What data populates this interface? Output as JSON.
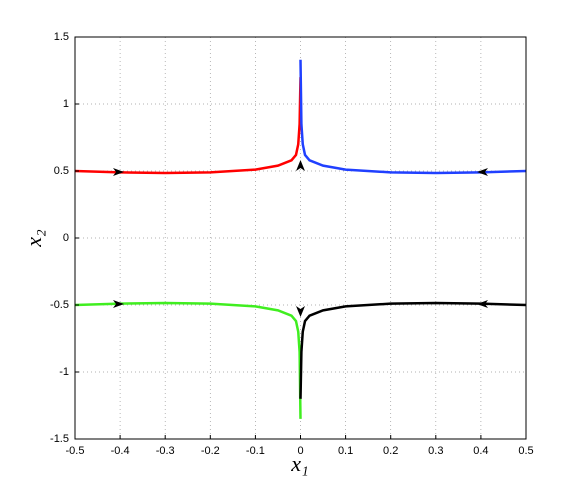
{
  "chart_data": {
    "type": "line",
    "xlabel": "x₁",
    "ylabel": "x₂",
    "xlim": [
      -0.5,
      0.5
    ],
    "xticks": [
      -0.5,
      -0.4,
      -0.3,
      -0.2,
      -0.1,
      0,
      0.1,
      0.2,
      0.3,
      0.4,
      0.5
    ],
    "ylim": [
      -1.5,
      1.5
    ],
    "yticks": [
      -1.5,
      -1,
      -0.5,
      0,
      0.5,
      1,
      1.5
    ],
    "grid": true,
    "series": [
      {
        "color": "#ff0000",
        "x": [
          -0.5,
          -0.4,
          -0.3,
          -0.2,
          -0.1,
          -0.05,
          -0.02,
          -0.01,
          -0.005,
          -0.002,
          0
        ],
        "values": [
          0.5,
          0.49,
          0.485,
          0.49,
          0.51,
          0.54,
          0.58,
          0.62,
          0.7,
          0.85,
          1.2
        ]
      },
      {
        "color": "#2040ff",
        "x": [
          0.5,
          0.4,
          0.3,
          0.2,
          0.1,
          0.05,
          0.02,
          0.01,
          0.005,
          0.002,
          0
        ],
        "values": [
          0.5,
          0.49,
          0.485,
          0.49,
          0.51,
          0.54,
          0.58,
          0.62,
          0.7,
          0.85,
          1.33
        ]
      },
      {
        "color": "#40ee20",
        "x": [
          -0.5,
          -0.4,
          -0.3,
          -0.2,
          -0.1,
          -0.05,
          -0.02,
          -0.01,
          -0.005,
          -0.002,
          0
        ],
        "values": [
          -0.5,
          -0.49,
          -0.485,
          -0.49,
          -0.51,
          -0.54,
          -0.58,
          -0.62,
          -0.7,
          -0.85,
          -1.35
        ]
      },
      {
        "color": "#000000",
        "x": [
          0.5,
          0.4,
          0.3,
          0.2,
          0.1,
          0.05,
          0.02,
          0.01,
          0.005,
          0.002,
          0
        ],
        "values": [
          -0.5,
          -0.49,
          -0.485,
          -0.49,
          -0.51,
          -0.54,
          -0.58,
          -0.62,
          -0.7,
          -0.85,
          -1.2
        ]
      }
    ]
  }
}
